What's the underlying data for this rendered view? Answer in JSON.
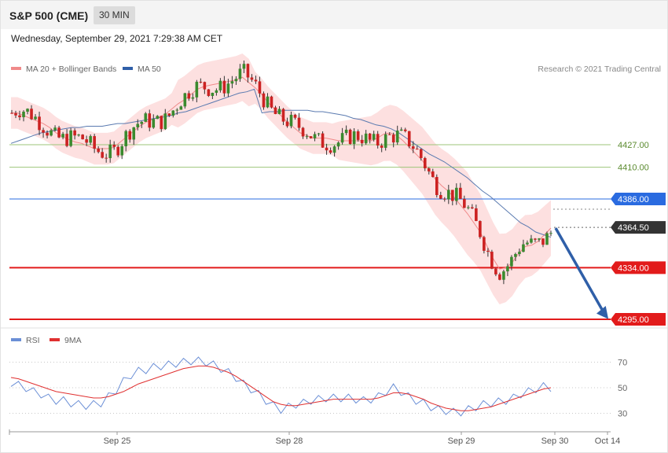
{
  "header": {
    "title": "S&P 500 (CME)",
    "timeframe": "30 MIN",
    "datetime": "Wednesday, September 29, 2021 7:29:38 AM CET"
  },
  "legend": {
    "ma20": "MA 20 + Bollinger Bands",
    "ma50": "MA 50",
    "copyright": "Research © 2021 Trading Central"
  },
  "rsi_legend": {
    "rsi": "RSI",
    "ma9": "9MA"
  },
  "colors": {
    "up": "#3a8a2e",
    "down": "#cc2222",
    "ma20": "#f08a8a",
    "bands": "#fde0e0",
    "ma50": "#5a7ab0",
    "support": "#e21b1b",
    "pivot": "#2a6be0",
    "resistance": "#9dc67a",
    "price_tag": "#333333",
    "rsi": "#6b8fd6",
    "rsi_ma": "#e03030",
    "arrow": "#2f5fa8"
  },
  "chart_data": [
    {
      "type": "candlestick",
      "title": "",
      "xlabel": "",
      "ylabel": "",
      "ylim": [
        4285,
        4485
      ],
      "x_ticks": [
        "Sep 25",
        "Sep 28",
        "Sep 29",
        "Sep 30",
        "Oct 14"
      ],
      "levels": [
        {
          "value": 4427.0,
          "label": "4427.00",
          "kind": "resistance"
        },
        {
          "value": 4410.0,
          "label": "4410.00",
          "kind": "resistance"
        },
        {
          "value": 4386.0,
          "label": "4386.00",
          "kind": "pivot"
        },
        {
          "value": 4364.5,
          "label": "4364.50",
          "kind": "last"
        },
        {
          "value": 4334.0,
          "label": "4334.00",
          "kind": "support"
        },
        {
          "value": 4295.0,
          "label": "4295.00",
          "kind": "support"
        }
      ],
      "series": [
        {
          "name": "MA 20 + Bollinger Bands",
          "values": [
            4451,
            4451,
            4449,
            4447,
            4445,
            4443,
            4440,
            4436,
            4433,
            4431,
            4429,
            4428,
            4426,
            4424,
            4424,
            4424,
            4425,
            4429,
            4433,
            4437,
            4441,
            4444,
            4446,
            4448,
            4450,
            4454,
            4458,
            4461,
            4465,
            4469,
            4471,
            4472,
            4473,
            4474,
            4475,
            4476,
            4478,
            4474,
            4470,
            4465,
            4459,
            4454,
            4449,
            4444,
            4440,
            4436,
            4434,
            4432,
            4432,
            4432,
            4431,
            4430,
            4430,
            4430,
            4430,
            4430,
            4430,
            4432,
            4435,
            4436,
            4434,
            4430,
            4425,
            4420,
            4415,
            4408,
            4401,
            4396,
            4392,
            4387,
            4381,
            4375,
            4368,
            4361,
            4351,
            4341,
            4333,
            4334,
            4338,
            4345,
            4350,
            4351,
            4354,
            4359,
            4364
          ]
        },
        {
          "name": "MA 50",
          "values": [
            4428,
            4430,
            4432,
            4434,
            4436,
            4437,
            4438,
            4439,
            4440,
            4440,
            4441,
            4441,
            4441,
            4442,
            4443,
            4443,
            4444,
            4445,
            4446,
            4447,
            4448,
            4449,
            4451,
            4452,
            4454,
            4456,
            4458,
            4460,
            4462,
            4464,
            4466,
            4467,
            4469,
            4451,
            4452,
            4452,
            4453,
            4453,
            4453,
            4453,
            4452,
            4452,
            4451,
            4450,
            4449,
            4447,
            4446,
            4444,
            4442,
            4441,
            4439,
            4436,
            4432,
            4428,
            4424,
            4420,
            4417,
            4414,
            4410,
            4406,
            4402,
            4397,
            4392,
            4388,
            4383,
            4378,
            4373,
            4368,
            4365,
            4361,
            4359,
            4357
          ]
        },
        {
          "name": "RSI",
          "values": [
            54,
            52,
            50,
            47,
            45,
            42,
            40,
            40,
            38,
            37,
            36,
            37,
            38,
            43,
            48,
            55,
            60,
            63,
            64,
            66,
            67,
            68,
            69,
            70,
            71,
            71,
            70,
            68,
            65,
            62,
            58,
            53,
            49,
            45,
            40,
            36,
            33,
            35,
            37,
            38,
            40,
            41,
            42,
            42,
            42,
            42,
            41,
            40,
            41,
            43,
            47,
            50,
            47,
            43,
            40,
            38,
            35,
            33,
            32,
            31,
            31,
            33,
            35,
            37,
            38,
            39,
            40,
            42,
            45,
            47,
            49,
            51,
            50
          ]
        },
        {
          "name": "9MA",
          "values": [
            58,
            57,
            55,
            53,
            51,
            49,
            47,
            46,
            45,
            44,
            43,
            42,
            42,
            43,
            45,
            47,
            50,
            53,
            55,
            57,
            59,
            61,
            63,
            65,
            66,
            67,
            67,
            66,
            64,
            62,
            59,
            55,
            51,
            47,
            43,
            39,
            37,
            36,
            36,
            37,
            38,
            39,
            40,
            41,
            41,
            41,
            41,
            41,
            41,
            42,
            44,
            46,
            46,
            45,
            43,
            41,
            38,
            36,
            34,
            33,
            32,
            32,
            33,
            34,
            35,
            37,
            39,
            41,
            43,
            45,
            47,
            49,
            50
          ]
        }
      ]
    }
  ],
  "rsi_axis": {
    "ticks": [
      "70",
      "50",
      "30"
    ]
  }
}
